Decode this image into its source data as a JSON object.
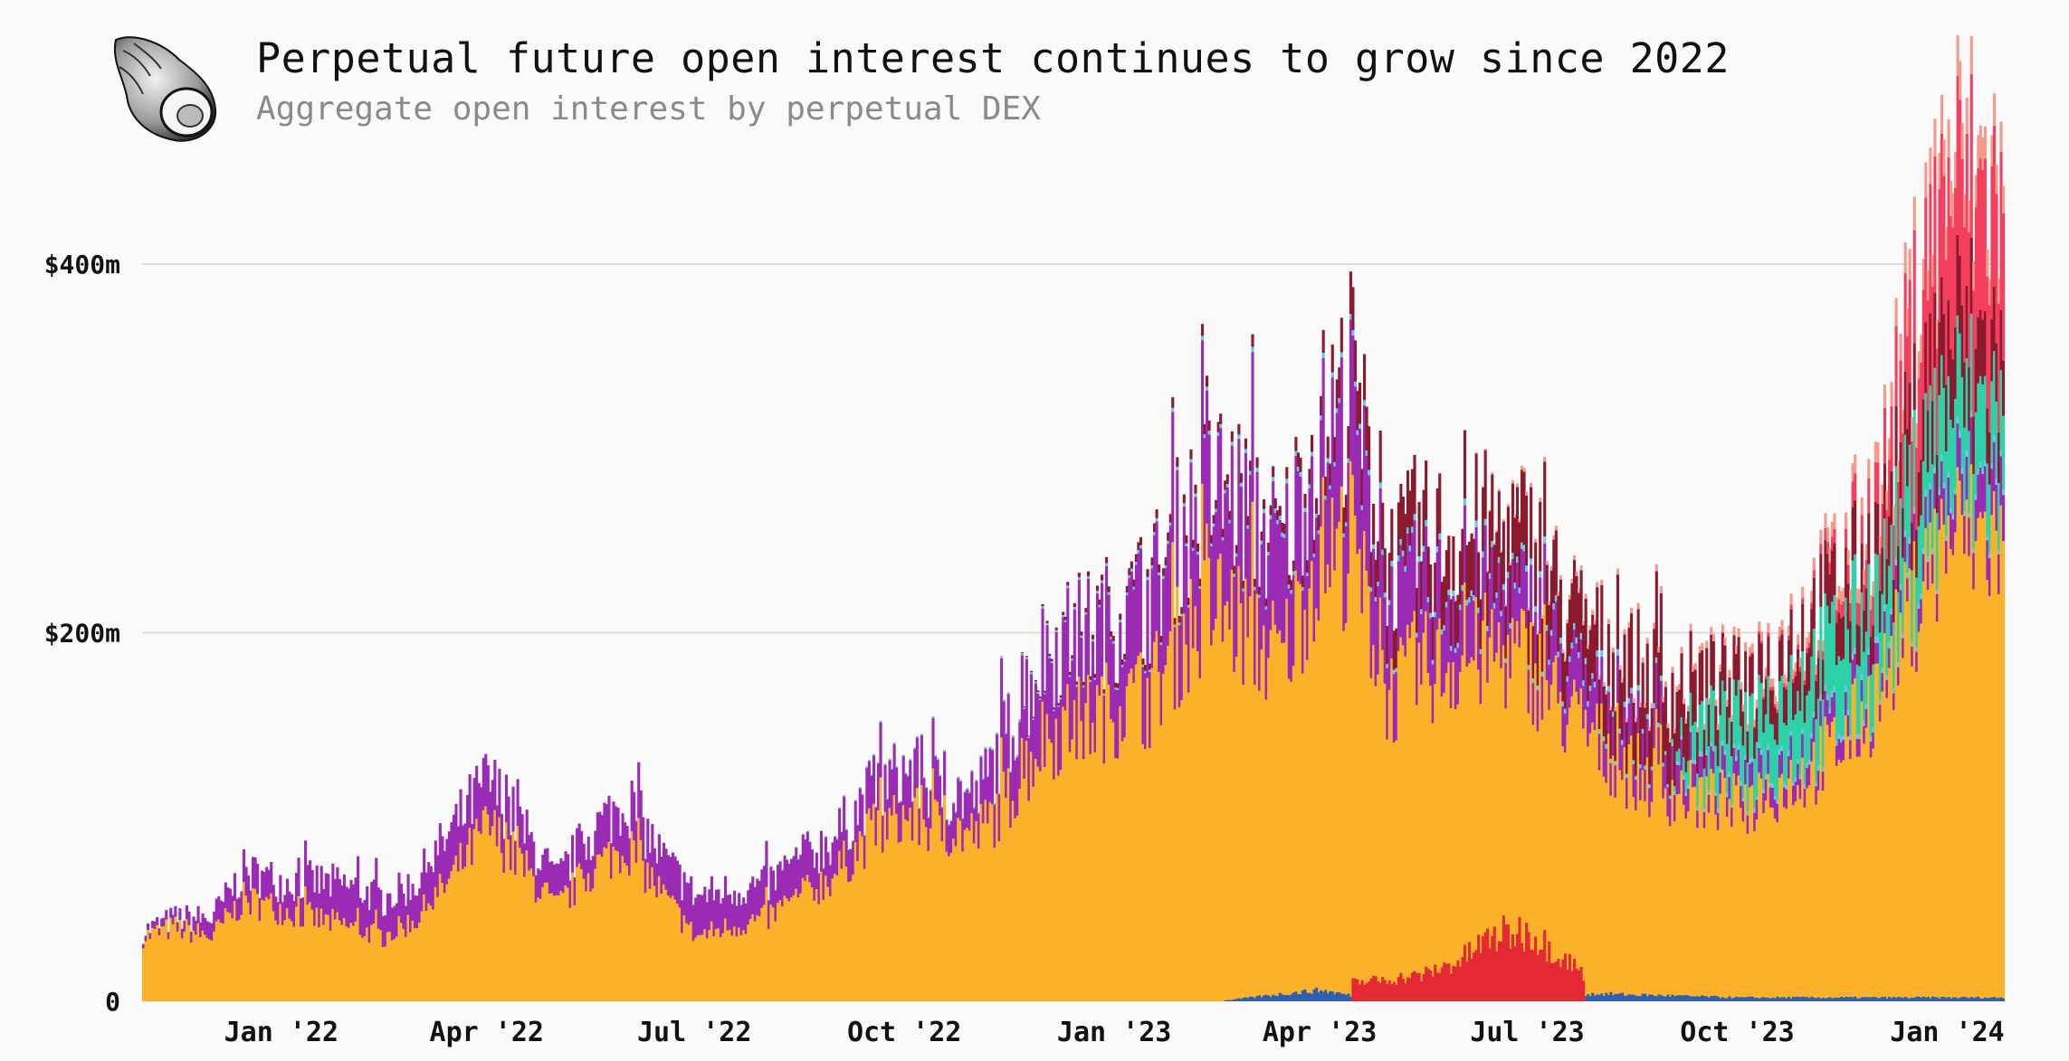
{
  "title": "Perpetual future open interest continues to grow since 2022",
  "subtitle": "Aggregate open interest by perpetual DEX",
  "logo_icon": "seashell-icon",
  "chart_data": {
    "type": "bar",
    "stacked": true,
    "grid": "horizontal",
    "y_tick_labels": [
      "0",
      "$200m",
      "$400m"
    ],
    "y_ticks": [
      0,
      200,
      400
    ],
    "ylim": [
      0,
      450
    ],
    "x_tick_labels": [
      "Jan '22",
      "Apr '22",
      "Jul '22",
      "Oct '22",
      "Jan '23",
      "Apr '23",
      "Jul '23",
      "Oct '23",
      "Jan '24"
    ],
    "x_ticks": [
      "2022-01-01",
      "2022-04-01",
      "2022-07-01",
      "2022-10-01",
      "2023-01-01",
      "2023-04-01",
      "2023-07-01",
      "2023-10-01",
      "2024-01-01"
    ],
    "x_range": [
      "2021-11-01",
      "2024-01-25"
    ],
    "unit": "$m",
    "series": [
      {
        "color": "#fbb22a",
        "points": [
          [
            "2021-11-01",
            35
          ],
          [
            "2021-11-15",
            40
          ],
          [
            "2021-12-01",
            35
          ],
          [
            "2021-12-15",
            55
          ],
          [
            "2022-01-01",
            50
          ],
          [
            "2022-01-15",
            45
          ],
          [
            "2022-02-01",
            40
          ],
          [
            "2022-02-15",
            35
          ],
          [
            "2022-03-01",
            45
          ],
          [
            "2022-03-15",
            65
          ],
          [
            "2022-04-01",
            95
          ],
          [
            "2022-04-15",
            75
          ],
          [
            "2022-05-01",
            50
          ],
          [
            "2022-05-15",
            70
          ],
          [
            "2022-06-01",
            85
          ],
          [
            "2022-06-15",
            60
          ],
          [
            "2022-07-01",
            35
          ],
          [
            "2022-07-15",
            40
          ],
          [
            "2022-08-01",
            45
          ],
          [
            "2022-08-15",
            55
          ],
          [
            "2022-09-01",
            70
          ],
          [
            "2022-09-15",
            90
          ],
          [
            "2022-10-01",
            100
          ],
          [
            "2022-10-15",
            95
          ],
          [
            "2022-11-01",
            90
          ],
          [
            "2022-11-15",
            110
          ],
          [
            "2022-12-01",
            145
          ],
          [
            "2022-12-15",
            150
          ],
          [
            "2023-01-01",
            160
          ],
          [
            "2023-01-15",
            165
          ],
          [
            "2023-02-01",
            200
          ],
          [
            "2023-02-15",
            215
          ],
          [
            "2023-03-01",
            200
          ],
          [
            "2023-03-15",
            185
          ],
          [
            "2023-04-01",
            245
          ],
          [
            "2023-04-15",
            245
          ],
          [
            "2023-05-01",
            165
          ],
          [
            "2023-05-15",
            180
          ],
          [
            "2023-06-01",
            185
          ],
          [
            "2023-06-15",
            190
          ],
          [
            "2023-07-01",
            185
          ],
          [
            "2023-07-15",
            160
          ],
          [
            "2023-08-01",
            140
          ],
          [
            "2023-08-15",
            125
          ],
          [
            "2023-09-01",
            115
          ],
          [
            "2023-09-15",
            110
          ],
          [
            "2023-10-01",
            105
          ],
          [
            "2023-10-15",
            115
          ],
          [
            "2023-11-01",
            125
          ],
          [
            "2023-11-15",
            140
          ],
          [
            "2023-12-01",
            165
          ],
          [
            "2023-12-15",
            210
          ],
          [
            "2024-01-01",
            255
          ],
          [
            "2024-01-25",
            250
          ]
        ]
      },
      {
        "color": "#9b2ab5",
        "points": [
          [
            "2021-11-01",
            3
          ],
          [
            "2021-11-15",
            5
          ],
          [
            "2021-12-01",
            10
          ],
          [
            "2021-12-15",
            15
          ],
          [
            "2022-01-01",
            15
          ],
          [
            "2022-01-15",
            20
          ],
          [
            "2022-02-01",
            22
          ],
          [
            "2022-02-15",
            20
          ],
          [
            "2022-03-01",
            20
          ],
          [
            "2022-03-15",
            25
          ],
          [
            "2022-04-01",
            25
          ],
          [
            "2022-04-15",
            20
          ],
          [
            "2022-05-01",
            15
          ],
          [
            "2022-05-15",
            20
          ],
          [
            "2022-06-01",
            25
          ],
          [
            "2022-06-15",
            20
          ],
          [
            "2022-07-01",
            22
          ],
          [
            "2022-07-15",
            20
          ],
          [
            "2022-08-01",
            18
          ],
          [
            "2022-08-15",
            20
          ],
          [
            "2022-09-01",
            20
          ],
          [
            "2022-09-15",
            22
          ],
          [
            "2022-10-01",
            25
          ],
          [
            "2022-10-15",
            20
          ],
          [
            "2022-11-01",
            20
          ],
          [
            "2022-11-15",
            35
          ],
          [
            "2022-12-01",
            45
          ],
          [
            "2022-12-15",
            45
          ],
          [
            "2023-01-01",
            45
          ],
          [
            "2023-01-15",
            50
          ],
          [
            "2023-02-01",
            55
          ],
          [
            "2023-02-15",
            60
          ],
          [
            "2023-03-01",
            60
          ],
          [
            "2023-03-15",
            55
          ],
          [
            "2023-04-01",
            55
          ],
          [
            "2023-04-15",
            65
          ],
          [
            "2023-05-01",
            45
          ],
          [
            "2023-05-15",
            40
          ],
          [
            "2023-06-01",
            35
          ],
          [
            "2023-06-15",
            30
          ],
          [
            "2023-07-01",
            28
          ],
          [
            "2023-07-15",
            25
          ],
          [
            "2023-08-01",
            22
          ],
          [
            "2023-08-15",
            20
          ],
          [
            "2023-09-01",
            18
          ],
          [
            "2023-09-15",
            10
          ],
          [
            "2023-10-01",
            12
          ],
          [
            "2023-10-15",
            12
          ],
          [
            "2023-11-01",
            12
          ],
          [
            "2023-11-15",
            12
          ],
          [
            "2023-12-01",
            10
          ],
          [
            "2023-12-15",
            12
          ],
          [
            "2024-01-01",
            20
          ],
          [
            "2024-01-25",
            25
          ]
        ]
      },
      {
        "color": "#6ec6e8",
        "points": [
          [
            "2021-11-01",
            0
          ],
          [
            "2022-06-01",
            0
          ],
          [
            "2022-12-01",
            1
          ],
          [
            "2023-03-01",
            2
          ],
          [
            "2023-06-01",
            3
          ],
          [
            "2023-08-01",
            3
          ],
          [
            "2023-09-01",
            2
          ],
          [
            "2023-12-01",
            3
          ],
          [
            "2024-01-25",
            3
          ]
        ]
      },
      {
        "color": "#2ed2a8",
        "points": [
          [
            "2021-11-01",
            0
          ],
          [
            "2023-09-01",
            0
          ],
          [
            "2023-09-15",
            25
          ],
          [
            "2023-10-01",
            30
          ],
          [
            "2023-10-15",
            35
          ],
          [
            "2023-11-01",
            40
          ],
          [
            "2023-11-15",
            45
          ],
          [
            "2023-12-01",
            40
          ],
          [
            "2023-12-15",
            45
          ],
          [
            "2024-01-01",
            50
          ],
          [
            "2024-01-25",
            40
          ]
        ]
      },
      {
        "color": "#8b1a2e",
        "points": [
          [
            "2021-11-01",
            0
          ],
          [
            "2022-11-15",
            0
          ],
          [
            "2022-12-15",
            2
          ],
          [
            "2023-01-15",
            4
          ],
          [
            "2023-02-15",
            5
          ],
          [
            "2023-03-15",
            5
          ],
          [
            "2023-04-01",
            10
          ],
          [
            "2023-04-15",
            20
          ],
          [
            "2023-05-01",
            25
          ],
          [
            "2023-06-01",
            30
          ],
          [
            "2023-07-01",
            35
          ],
          [
            "2023-07-15",
            30
          ],
          [
            "2023-08-01",
            30
          ],
          [
            "2023-08-15",
            35
          ],
          [
            "2023-09-01",
            35
          ],
          [
            "2023-09-15",
            25
          ],
          [
            "2023-10-01",
            20
          ],
          [
            "2023-10-15",
            20
          ],
          [
            "2023-11-01",
            25
          ],
          [
            "2023-11-15",
            25
          ],
          [
            "2023-12-01",
            25
          ],
          [
            "2023-12-15",
            30
          ],
          [
            "2024-01-01",
            40
          ],
          [
            "2024-01-25",
            30
          ]
        ]
      },
      {
        "color": "#f43f5e",
        "points": [
          [
            "2021-11-01",
            0
          ],
          [
            "2023-10-01",
            0
          ],
          [
            "2023-10-15",
            2
          ],
          [
            "2023-11-01",
            3
          ],
          [
            "2023-11-15",
            8
          ],
          [
            "2023-12-01",
            20
          ],
          [
            "2023-12-15",
            50
          ],
          [
            "2024-01-01",
            75
          ],
          [
            "2024-01-25",
            80
          ]
        ]
      },
      {
        "color": "#f59a8a",
        "points": [
          [
            "2021-11-01",
            0
          ],
          [
            "2023-06-01",
            0
          ],
          [
            "2023-07-01",
            2
          ],
          [
            "2023-09-01",
            3
          ],
          [
            "2023-10-01",
            4
          ],
          [
            "2023-11-01",
            6
          ],
          [
            "2023-12-01",
            10
          ],
          [
            "2023-12-15",
            15
          ],
          [
            "2024-01-01",
            20
          ],
          [
            "2024-01-25",
            15
          ]
        ]
      }
    ],
    "overlay_series": [
      {
        "color": "#2f5fb3",
        "points": [
          [
            "2021-11-01",
            0
          ],
          [
            "2023-02-15",
            0
          ],
          [
            "2023-03-01",
            2
          ],
          [
            "2023-03-15",
            4
          ],
          [
            "2023-04-01",
            6
          ],
          [
            "2023-04-15",
            3
          ],
          [
            "2023-05-01",
            2
          ],
          [
            "2023-06-01",
            2
          ],
          [
            "2023-07-01",
            3
          ],
          [
            "2023-08-01",
            4
          ],
          [
            "2023-09-01",
            3
          ],
          [
            "2023-10-01",
            2
          ],
          [
            "2024-01-25",
            2
          ]
        ]
      },
      {
        "color": "#e52934",
        "points": [
          [
            "2021-11-01",
            0
          ],
          [
            "2023-04-14",
            0
          ],
          [
            "2023-04-15",
            10
          ],
          [
            "2023-05-01",
            12
          ],
          [
            "2023-05-15",
            14
          ],
          [
            "2023-06-01",
            22
          ],
          [
            "2023-06-15",
            35
          ],
          [
            "2023-07-01",
            38
          ],
          [
            "2023-07-15",
            25
          ],
          [
            "2023-07-25",
            15
          ],
          [
            "2023-07-26",
            0
          ],
          [
            "2024-01-25",
            0
          ]
        ]
      }
    ]
  }
}
